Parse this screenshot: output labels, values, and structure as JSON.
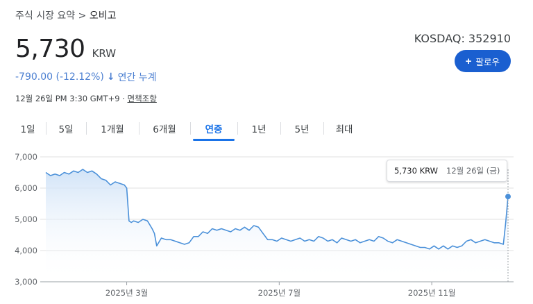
{
  "breadcrumb": {
    "parent": "주식 시장 요약",
    "separator": ">",
    "current": "오비고"
  },
  "quote": {
    "price": "5,730",
    "currency": "KRW",
    "change": "-790.00 (-12.12%)",
    "change_arrow": "arrow-down-icon",
    "period_label": "연간 누계",
    "timestamp": "12월 26일 PM 3:30 GMT+9 ·",
    "disclaimer": "면책조항",
    "ticker": "KOSDAQ: 352910"
  },
  "follow_button": {
    "icon": "plus-icon",
    "label": "팔로우",
    "color": "#1a5fd0"
  },
  "tabs": [
    {
      "label": "1일",
      "active": false
    },
    {
      "label": "5일",
      "active": false
    },
    {
      "label": "1개월",
      "active": false
    },
    {
      "label": "6개월",
      "active": false
    },
    {
      "label": "연중",
      "active": true
    },
    {
      "label": "1년",
      "active": false
    },
    {
      "label": "5년",
      "active": false
    },
    {
      "label": "최대",
      "active": false
    }
  ],
  "tooltip": {
    "price": "5,730 KRW",
    "date": "12월 26일 (금)"
  },
  "colors": {
    "line": "#4a90d9",
    "fill_top": "#cfe2f7",
    "accent": "#1a73e8",
    "grid": "#e0e0e0"
  },
  "chart_data": {
    "type": "area",
    "ylim": [
      3000,
      7000
    ],
    "y_ticks": [
      7000,
      6000,
      5000,
      4000,
      3000
    ],
    "y_tick_labels": [
      "7,000",
      "6,000",
      "5,000",
      "4,000",
      "3,000"
    ],
    "x_tick_labels": [
      "2025년 3월",
      "2025년 7월",
      "2025년 11월"
    ],
    "x_tick_positions": [
      0.175,
      0.505,
      0.835
    ],
    "series": [
      {
        "x": [
          0,
          0.01,
          0.02,
          0.03,
          0.04,
          0.05,
          0.06,
          0.07,
          0.08,
          0.09,
          0.1,
          0.11,
          0.12,
          0.13,
          0.14,
          0.15,
          0.16,
          0.17,
          0.175,
          0.18,
          0.185,
          0.19,
          0.2,
          0.21,
          0.22,
          0.23,
          0.235,
          0.24,
          0.25,
          0.26,
          0.27,
          0.28,
          0.29,
          0.3,
          0.31,
          0.32,
          0.33,
          0.34,
          0.35,
          0.36,
          0.37,
          0.38,
          0.39,
          0.4,
          0.41,
          0.42,
          0.43,
          0.44,
          0.45,
          0.46,
          0.47,
          0.48,
          0.49,
          0.5,
          0.51,
          0.52,
          0.53,
          0.54,
          0.55,
          0.56,
          0.57,
          0.58,
          0.59,
          0.6,
          0.61,
          0.62,
          0.63,
          0.64,
          0.65,
          0.66,
          0.67,
          0.68,
          0.69,
          0.7,
          0.71,
          0.72,
          0.73,
          0.74,
          0.75,
          0.76,
          0.77,
          0.78,
          0.79,
          0.8,
          0.81,
          0.82,
          0.83,
          0.84,
          0.85,
          0.86,
          0.87,
          0.88,
          0.89,
          0.9,
          0.91,
          0.92,
          0.93,
          0.94,
          0.95,
          0.96,
          0.97,
          0.98,
          0.99,
          0.995,
          1.0
        ],
        "y": [
          6500,
          6400,
          6450,
          6400,
          6500,
          6450,
          6550,
          6500,
          6600,
          6500,
          6550,
          6450,
          6300,
          6250,
          6100,
          6200,
          6150,
          6100,
          6000,
          4950,
          4900,
          4950,
          4900,
          5000,
          4950,
          4700,
          4550,
          4150,
          4400,
          4350,
          4350,
          4300,
          4250,
          4200,
          4250,
          4450,
          4450,
          4600,
          4550,
          4700,
          4650,
          4700,
          4650,
          4600,
          4700,
          4650,
          4750,
          4650,
          4800,
          4750,
          4550,
          4350,
          4350,
          4300,
          4400,
          4350,
          4300,
          4350,
          4400,
          4300,
          4350,
          4300,
          4450,
          4400,
          4300,
          4350,
          4250,
          4400,
          4350,
          4300,
          4350,
          4250,
          4300,
          4350,
          4300,
          4450,
          4400,
          4300,
          4250,
          4350,
          4300,
          4250,
          4200,
          4150,
          4100,
          4100,
          4050,
          4150,
          4050,
          4150,
          4050,
          4150,
          4100,
          4150,
          4300,
          4350,
          4250,
          4300,
          4350,
          4300,
          4250,
          4250,
          4200,
          4900,
          5730
        ]
      }
    ]
  }
}
